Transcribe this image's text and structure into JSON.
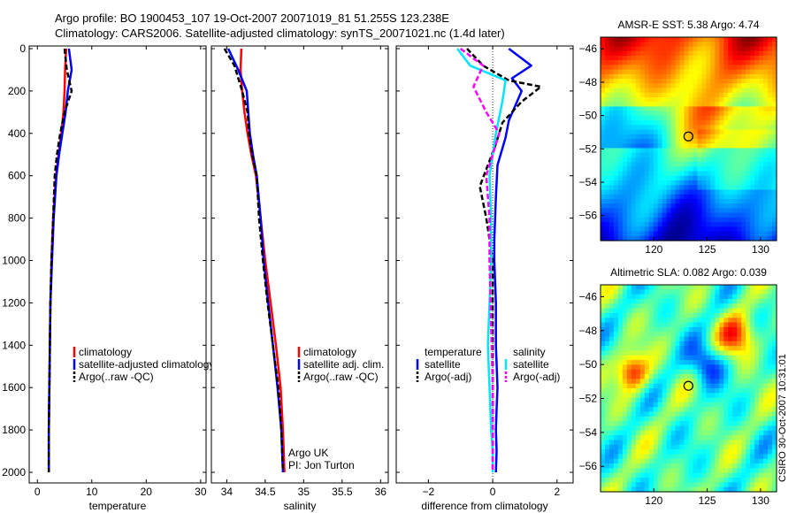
{
  "header": {
    "line1": "Argo profile: BO 1900453_107 19-Oct-2007 20071019_81 51.255S 123.238E",
    "line2": "Climatology: CARS2006. Satellite-adjusted climatology: synTS_20071021.nc (1.4d later)"
  },
  "credit": "CSIRO 30-Oct-2007 10:31:01",
  "colors": {
    "red": "#ff0000",
    "blue": "#0000ff",
    "black": "#000000",
    "cyan": "#00e5ff",
    "magenta": "#ff00ff"
  },
  "chart_data": [
    {
      "type": "line",
      "xlabel": "temperature",
      "xlim": [
        -1.5,
        31
      ],
      "xticks": [
        "0",
        "10",
        "20",
        "30"
      ],
      "ylim": [
        0,
        2100
      ],
      "yticks": [
        "0",
        "200",
        "400",
        "600",
        "800",
        "1000",
        "1200",
        "1400",
        "1600",
        "1800",
        "2000"
      ],
      "legend_position": "lower-right",
      "series": [
        {
          "name": "climatology",
          "color": "red",
          "dash": false,
          "x": [
            5.3,
            5.1,
            5.0,
            4.8,
            4.4,
            3.9,
            3.4,
            2.9,
            2.6,
            2.4,
            2.3,
            2.2,
            2.1,
            2.1
          ],
          "y": [
            0,
            100,
            200,
            300,
            400,
            500,
            600,
            800,
            1000,
            1200,
            1400,
            1600,
            1800,
            2000
          ]
        },
        {
          "name": "satellite-adjusted climatology",
          "color": "blue",
          "dash": false,
          "x": [
            5.8,
            6.3,
            5.6,
            5.2,
            4.6,
            4.0,
            3.5,
            3.0,
            2.7,
            2.4,
            2.3,
            2.2,
            2.1,
            2.1
          ],
          "y": [
            0,
            100,
            200,
            300,
            400,
            500,
            600,
            800,
            1000,
            1200,
            1400,
            1600,
            1800,
            2000
          ]
        },
        {
          "name": "Argo(..raw -QC)",
          "color": "black",
          "dash": true,
          "x": [
            5.0,
            5.4,
            6.3,
            5.0,
            4.2,
            3.6,
            3.2,
            2.9,
            2.6,
            2.4,
            2.3,
            2.2,
            2.1,
            2.1
          ],
          "y": [
            0,
            100,
            200,
            300,
            400,
            500,
            600,
            800,
            1000,
            1200,
            1400,
            1600,
            1800,
            2000
          ]
        }
      ]
    },
    {
      "type": "line",
      "xlabel": "salinity",
      "xlim": [
        33.8,
        36.1
      ],
      "xticks": [
        "34",
        "34.5",
        "35",
        "35.5",
        "36"
      ],
      "ylim": [
        0,
        2100
      ],
      "legend_position": "lower-right",
      "annotation": [
        "Argo UK",
        "PI: Jon Turton"
      ],
      "series": [
        {
          "name": "climatology",
          "color": "red",
          "dash": false,
          "x": [
            34.19,
            34.18,
            34.2,
            34.23,
            34.27,
            34.32,
            34.38,
            34.44,
            34.5,
            34.57,
            34.64,
            34.7,
            34.73,
            34.75
          ],
          "y": [
            0,
            100,
            200,
            300,
            400,
            500,
            600,
            800,
            1000,
            1200,
            1400,
            1600,
            1800,
            2000
          ]
        },
        {
          "name": "satellite adj. clim.",
          "color": "blue",
          "dash": false,
          "x": [
            34.02,
            34.15,
            34.26,
            34.28,
            34.3,
            34.34,
            34.39,
            34.44,
            34.48,
            34.54,
            34.6,
            34.66,
            34.71,
            34.73
          ],
          "y": [
            0,
            100,
            200,
            300,
            400,
            500,
            600,
            800,
            1000,
            1200,
            1400,
            1600,
            1800,
            2000
          ]
        },
        {
          "name": "Argo(..raw -QC)",
          "color": "black",
          "dash": true,
          "x": [
            33.97,
            34.1,
            34.2,
            34.27,
            34.29,
            34.33,
            34.39,
            34.42,
            34.47,
            34.53,
            34.6,
            34.67,
            34.71,
            34.73
          ],
          "y": [
            0,
            80,
            200,
            300,
            400,
            500,
            600,
            800,
            1000,
            1200,
            1400,
            1600,
            1800,
            2000
          ]
        }
      ]
    },
    {
      "type": "line",
      "xlabel": "difference from climatology",
      "xlim": [
        -3,
        2.5
      ],
      "xticks": [
        "-2",
        "0",
        "2"
      ],
      "ylim": [
        0,
        2100
      ],
      "legend_position": "lower-center",
      "legend_headers": [
        "temperature",
        "salinity"
      ],
      "series": [
        {
          "name": "satellite",
          "group": "temperature",
          "color": "blue",
          "dash": false,
          "x": [
            0.5,
            1.2,
            0.6,
            0.9,
            0.5,
            0.4,
            0.15,
            0.1,
            0.05,
            0.05,
            0.1,
            0.1,
            0.15,
            0.12,
            0.1,
            0.12,
            0.1
          ],
          "y": [
            0,
            80,
            140,
            200,
            340,
            420,
            550,
            700,
            900,
            1000,
            1200,
            1400,
            1600,
            1700,
            1800,
            1900,
            2000
          ]
        },
        {
          "name": "Argo(-adj)",
          "group": "temperature",
          "color": "black",
          "dash": true,
          "x": [
            -0.8,
            -0.3,
            0.5,
            1.5,
            0.9,
            0.3,
            0.1,
            -0.4,
            -0.2,
            0.0,
            0.0,
            0.0,
            0.0,
            0.0,
            0.0,
            0.0
          ],
          "y": [
            0,
            80,
            150,
            180,
            250,
            350,
            450,
            650,
            800,
            1000,
            1200,
            1400,
            1600,
            1800,
            1900,
            2000
          ]
        },
        {
          "name": "satellite",
          "group": "salinity",
          "color": "cyan",
          "dash": false,
          "x": [
            -1.1,
            -0.7,
            0.4,
            0.3,
            0.1,
            -0.1,
            -0.05,
            -0.05,
            -0.1,
            -0.15,
            -0.1,
            -0.05,
            0.0,
            0.0
          ],
          "y": [
            0,
            80,
            150,
            250,
            400,
            600,
            800,
            1000,
            1200,
            1400,
            1600,
            1800,
            1900,
            2000
          ]
        },
        {
          "name": "Argo(-adj)",
          "group": "salinity",
          "color": "magenta",
          "dash": true,
          "x": [
            -1.0,
            -0.3,
            -0.6,
            -0.2,
            0.2,
            0.0,
            -0.2,
            -0.1,
            -0.1,
            -0.05,
            0.0,
            0.0,
            0.0
          ],
          "y": [
            0,
            80,
            180,
            300,
            400,
            500,
            600,
            800,
            1000,
            1300,
            1600,
            1900,
            2000
          ]
        }
      ]
    },
    {
      "type": "heatmap",
      "title": "AMSR-E SST: 5.38 Argo: 4.74",
      "xlim": [
        115,
        131.5
      ],
      "ylim": [
        -57.5,
        -45.3
      ],
      "xticks": [
        "120",
        "125",
        "130"
      ],
      "yticks": [
        "-46",
        "-48",
        "-50",
        "-52",
        "-54",
        "-56"
      ],
      "marker": {
        "x": 123.238,
        "y": -51.255
      },
      "colormap": "jet"
    },
    {
      "type": "heatmap",
      "title": "Altimetric SLA: 0.082 Argo: 0.039",
      "xlim": [
        115,
        131.5
      ],
      "ylim": [
        -57.5,
        -45.3
      ],
      "xticks": [
        "120",
        "125",
        "130"
      ],
      "yticks": [
        "-46",
        "-48",
        "-50",
        "-52",
        "-54",
        "-56"
      ],
      "marker": {
        "x": 123.238,
        "y": -51.255
      },
      "colormap": "jet"
    }
  ]
}
